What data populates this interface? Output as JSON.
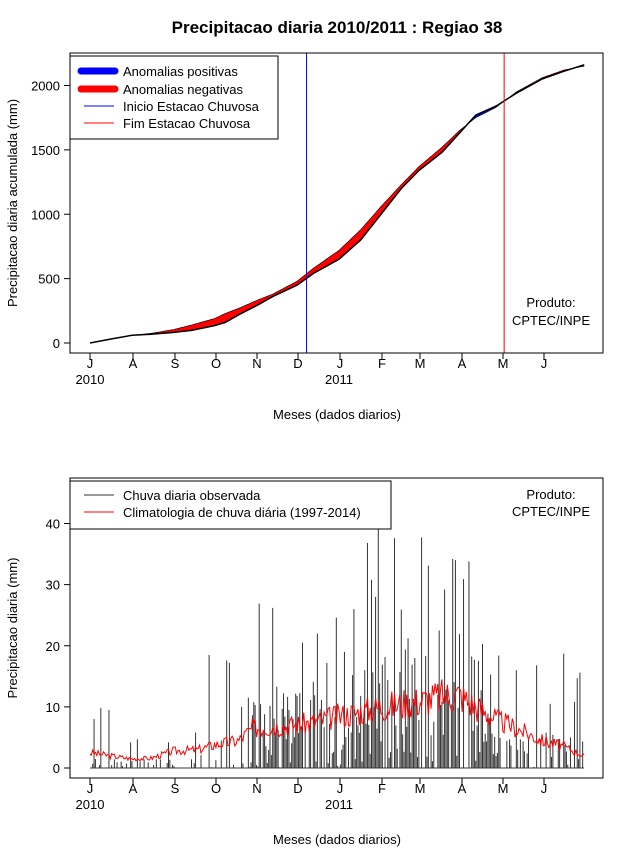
{
  "chart_data": [
    {
      "type": "area",
      "title": "Precipitacao diaria 2010/2011 : Regiao 38",
      "ylabel": "Precipitacao diaria acumulada (mm)",
      "xlabel": "Meses (dados diarios)",
      "x_ticks": [
        "J",
        "A",
        "S",
        "O",
        "N",
        "D",
        "J",
        "F",
        "M",
        "A",
        "M",
        "J"
      ],
      "year_labels": [
        "2010",
        "2011"
      ],
      "y_ticks": [
        0,
        500,
        1000,
        1500,
        2000
      ],
      "ylim": [
        0,
        2200
      ],
      "day_range": [
        0,
        365
      ],
      "legend": {
        "position": "top-left",
        "items": [
          {
            "label": "Anomalias positivas",
            "color": "#0000ff",
            "style": "thick"
          },
          {
            "label": "Anomalias negativas",
            "color": "#ff0000",
            "style": "thick"
          },
          {
            "label": "Inicio Estacao Chuvosa",
            "color": "#0000ff",
            "style": "thin"
          },
          {
            "label": "Fim Estacao Chuvosa",
            "color": "#ff0000",
            "style": "thin"
          }
        ]
      },
      "rainy_season_start_day": 160,
      "rainy_season_end_day": 306,
      "product_note": [
        "Produto:",
        "CPTEC/INPE"
      ],
      "observed_cumulative": [
        {
          "day": 0,
          "value": 0
        },
        {
          "day": 15,
          "value": 30
        },
        {
          "day": 31,
          "value": 60
        },
        {
          "day": 45,
          "value": 68
        },
        {
          "day": 62,
          "value": 82
        },
        {
          "day": 75,
          "value": 98
        },
        {
          "day": 92,
          "value": 135
        },
        {
          "day": 100,
          "value": 160
        },
        {
          "day": 110,
          "value": 220
        },
        {
          "day": 123,
          "value": 290
        },
        {
          "day": 135,
          "value": 360
        },
        {
          "day": 153,
          "value": 450
        },
        {
          "day": 165,
          "value": 540
        },
        {
          "day": 184,
          "value": 650
        },
        {
          "day": 200,
          "value": 800
        },
        {
          "day": 215,
          "value": 1000
        },
        {
          "day": 230,
          "value": 1200
        },
        {
          "day": 243,
          "value": 1340
        },
        {
          "day": 260,
          "value": 1480
        },
        {
          "day": 273,
          "value": 1630
        },
        {
          "day": 285,
          "value": 1770
        },
        {
          "day": 300,
          "value": 1840
        },
        {
          "day": 315,
          "value": 1940
        },
        {
          "day": 334,
          "value": 2050
        },
        {
          "day": 350,
          "value": 2110
        },
        {
          "day": 365,
          "value": 2160
        }
      ],
      "climatology_cumulative": [
        {
          "day": 0,
          "value": 0
        },
        {
          "day": 15,
          "value": 30
        },
        {
          "day": 31,
          "value": 60
        },
        {
          "day": 45,
          "value": 75
        },
        {
          "day": 62,
          "value": 105
        },
        {
          "day": 75,
          "value": 140
        },
        {
          "day": 92,
          "value": 190
        },
        {
          "day": 100,
          "value": 230
        },
        {
          "day": 110,
          "value": 270
        },
        {
          "day": 123,
          "value": 330
        },
        {
          "day": 135,
          "value": 380
        },
        {
          "day": 153,
          "value": 480
        },
        {
          "day": 165,
          "value": 580
        },
        {
          "day": 184,
          "value": 720
        },
        {
          "day": 200,
          "value": 880
        },
        {
          "day": 215,
          "value": 1060
        },
        {
          "day": 230,
          "value": 1230
        },
        {
          "day": 243,
          "value": 1370
        },
        {
          "day": 260,
          "value": 1520
        },
        {
          "day": 273,
          "value": 1650
        },
        {
          "day": 285,
          "value": 1750
        },
        {
          "day": 300,
          "value": 1830
        },
        {
          "day": 315,
          "value": 1950
        },
        {
          "day": 334,
          "value": 2060
        },
        {
          "day": 350,
          "value": 2120
        },
        {
          "day": 365,
          "value": 2150
        }
      ]
    },
    {
      "type": "bar",
      "ylabel": "Precipitacao diaria (mm)",
      "xlabel": "Meses (dados diarios)",
      "x_ticks": [
        "J",
        "A",
        "S",
        "O",
        "N",
        "D",
        "J",
        "F",
        "M",
        "A",
        "M",
        "J"
      ],
      "year_labels": [
        "2010",
        "2011"
      ],
      "y_ticks": [
        0,
        10,
        20,
        30,
        40
      ],
      "ylim": [
        0,
        47
      ],
      "day_range": [
        0,
        365
      ],
      "legend": {
        "position": "top-left",
        "items": [
          {
            "label": "Chuva diaria observada",
            "color": "#333333"
          },
          {
            "label": "Climatologia de chuva diária (1997-2014)",
            "color": "#ff0000"
          }
        ]
      },
      "product_note": [
        "Produto:",
        "CPTEC/INPE"
      ],
      "observed_daily_peaks": [
        {
          "day": 3,
          "value": 8
        },
        {
          "day": 8,
          "value": 9.8
        },
        {
          "day": 14,
          "value": 9.5
        },
        {
          "day": 30,
          "value": 4.2
        },
        {
          "day": 35,
          "value": 4.7
        },
        {
          "day": 58,
          "value": 4.2
        },
        {
          "day": 78,
          "value": 5.8
        },
        {
          "day": 82,
          "value": 2.1
        },
        {
          "day": 88,
          "value": 18.5
        },
        {
          "day": 97,
          "value": 4.5
        },
        {
          "day": 101,
          "value": 17.6
        },
        {
          "day": 103,
          "value": 17.2
        },
        {
          "day": 112,
          "value": 10
        },
        {
          "day": 117,
          "value": 11.5
        },
        {
          "day": 125,
          "value": 26.9
        },
        {
          "day": 129,
          "value": 8.8
        },
        {
          "day": 135,
          "value": 26.2
        },
        {
          "day": 138,
          "value": 13.3
        },
        {
          "day": 147,
          "value": 9.5
        },
        {
          "day": 153,
          "value": 11.8
        },
        {
          "day": 157,
          "value": 20.5
        },
        {
          "day": 168,
          "value": 22
        },
        {
          "day": 175,
          "value": 17.2
        },
        {
          "day": 182,
          "value": 24.6
        },
        {
          "day": 188,
          "value": 19
        },
        {
          "day": 195,
          "value": 26
        },
        {
          "day": 200,
          "value": 11.8
        },
        {
          "day": 205,
          "value": 36.8
        },
        {
          "day": 208,
          "value": 30.8
        },
        {
          "day": 211,
          "value": 28
        },
        {
          "day": 213,
          "value": 40.8
        },
        {
          "day": 220,
          "value": 14.4
        },
        {
          "day": 225,
          "value": 37.6
        },
        {
          "day": 230,
          "value": 25.9
        },
        {
          "day": 235,
          "value": 21.2
        },
        {
          "day": 240,
          "value": 18
        },
        {
          "day": 245,
          "value": 37.7
        },
        {
          "day": 250,
          "value": 33.1
        },
        {
          "day": 258,
          "value": 22.5
        },
        {
          "day": 262,
          "value": 29.2
        },
        {
          "day": 268,
          "value": 34.2
        },
        {
          "day": 270,
          "value": 34
        },
        {
          "day": 276,
          "value": 30.9
        },
        {
          "day": 280,
          "value": 33.8
        },
        {
          "day": 284,
          "value": 17.7
        },
        {
          "day": 290,
          "value": 20.3
        },
        {
          "day": 295,
          "value": 8.2
        },
        {
          "day": 302,
          "value": 18.4
        },
        {
          "day": 315,
          "value": 16
        },
        {
          "day": 324,
          "value": 5
        },
        {
          "day": 330,
          "value": 16.8
        },
        {
          "day": 340,
          "value": 10.5
        },
        {
          "day": 350,
          "value": 18.7
        },
        {
          "day": 355,
          "value": 5
        },
        {
          "day": 358,
          "value": 10.8
        },
        {
          "day": 360,
          "value": 14.7
        },
        {
          "day": 362,
          "value": 15.6
        }
      ],
      "climatology_daily": [
        {
          "day": 0,
          "value": 2.5
        },
        {
          "day": 15,
          "value": 2.0
        },
        {
          "day": 31,
          "value": 1.5
        },
        {
          "day": 45,
          "value": 1.6
        },
        {
          "day": 62,
          "value": 2.8
        },
        {
          "day": 80,
          "value": 3.0
        },
        {
          "day": 92,
          "value": 3.8
        },
        {
          "day": 110,
          "value": 4.5
        },
        {
          "day": 120,
          "value": 6.5
        },
        {
          "day": 135,
          "value": 6.8
        },
        {
          "day": 150,
          "value": 7.0
        },
        {
          "day": 165,
          "value": 7.5
        },
        {
          "day": 184,
          "value": 8.5
        },
        {
          "day": 200,
          "value": 9.2
        },
        {
          "day": 215,
          "value": 10.0
        },
        {
          "day": 230,
          "value": 10.5
        },
        {
          "day": 245,
          "value": 11.0
        },
        {
          "day": 260,
          "value": 11.8
        },
        {
          "day": 273,
          "value": 12.0
        },
        {
          "day": 285,
          "value": 10.0
        },
        {
          "day": 300,
          "value": 8.0
        },
        {
          "day": 315,
          "value": 6.5
        },
        {
          "day": 334,
          "value": 4.5
        },
        {
          "day": 350,
          "value": 3.5
        },
        {
          "day": 365,
          "value": 2.0
        }
      ]
    }
  ]
}
